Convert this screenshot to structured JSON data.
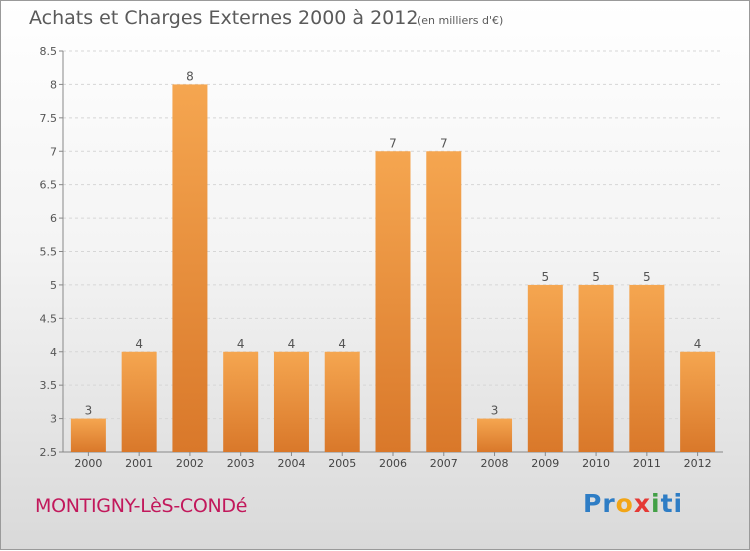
{
  "header": {
    "title": "Achats et Charges Externes 2000 à 2012",
    "unit": "(en milliers d'€)"
  },
  "footer": {
    "commune": "MONTIGNY-LèS-CONDé",
    "logo_letters": [
      {
        "ch": "P",
        "color": "#2e7dc5"
      },
      {
        "ch": "r",
        "color": "#2e7dc5"
      },
      {
        "ch": "o",
        "color": "#f2a516"
      },
      {
        "ch": "x",
        "color": "#e53935"
      },
      {
        "ch": "i",
        "color": "#43a047"
      },
      {
        "ch": "t",
        "color": "#2e7dc5"
      },
      {
        "ch": "i",
        "color": "#2e7dc5"
      }
    ]
  },
  "chart_data": {
    "type": "bar",
    "categories": [
      "2000",
      "2001",
      "2002",
      "2003",
      "2004",
      "2005",
      "2006",
      "2007",
      "2008",
      "2009",
      "2010",
      "2011",
      "2012"
    ],
    "values": [
      3,
      4,
      8,
      4,
      4,
      4,
      7,
      7,
      3,
      5,
      5,
      5,
      4
    ],
    "data_labels": [
      "3",
      "4",
      "8",
      "4",
      "4",
      "4",
      "7",
      "7",
      "3",
      "5",
      "5",
      "5",
      "4"
    ],
    "ylim": [
      2.5,
      8.5
    ],
    "yticks": [
      "2.5",
      "3",
      "3.5",
      "4",
      "4.5",
      "5",
      "5.5",
      "6",
      "6.5",
      "7",
      "7.5",
      "8",
      "8.5"
    ],
    "grid": true,
    "bar_color_light": "#f5a650",
    "bar_color_dark": "#d9782a"
  }
}
